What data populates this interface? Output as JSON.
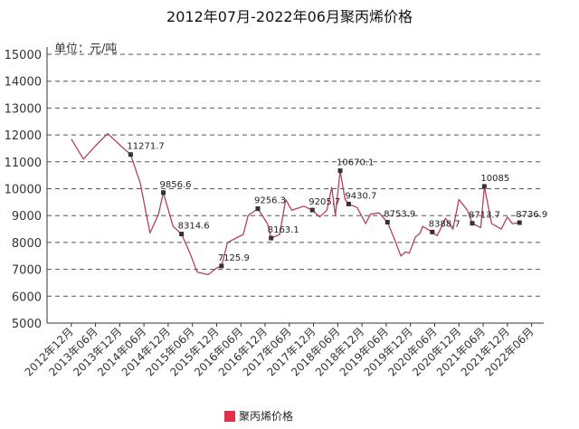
{
  "chart_data": {
    "type": "line",
    "title": "2012年07月-2022年06月聚丙烯价格",
    "unit_label": "单位：元/吨",
    "ylim": [
      5000,
      15000
    ],
    "yticks": [
      5000,
      6000,
      7000,
      8000,
      9000,
      10000,
      11000,
      12000,
      13000,
      14000,
      15000
    ],
    "grid": "horizontal dashed",
    "legend_position": "bottom-center",
    "x_tick_labels": [
      "2012年12月",
      "2013年06月",
      "2013年12月",
      "2014年06月",
      "2014年12月",
      "2015年06月",
      "2015年12月",
      "2016年06月",
      "2016年12月",
      "2017年06月",
      "2017年12月",
      "2018年06月",
      "2018年12月",
      "2019年06月",
      "2019年12月",
      "2020年06月",
      "2020年12月",
      "2021年06月",
      "2021年12月",
      "2022年06月"
    ],
    "series": [
      {
        "name": "聚丙烯价格",
        "color": "#b5415a",
        "points": [
          {
            "t": 1.0,
            "y": 11850
          },
          {
            "t": 1.5,
            "y": 11100
          },
          {
            "t": 2.0,
            "y": 11600
          },
          {
            "t": 2.5,
            "y": 12050
          },
          {
            "t": 3.1,
            "y": 11550
          },
          {
            "t": 3.45,
            "y": 11271.7
          },
          {
            "t": 3.85,
            "y": 10200
          },
          {
            "t": 4.25,
            "y": 8350
          },
          {
            "t": 4.6,
            "y": 9050
          },
          {
            "t": 4.8,
            "y": 9856.6
          },
          {
            "t": 5.2,
            "y": 8600
          },
          {
            "t": 5.55,
            "y": 8314.6
          },
          {
            "t": 5.9,
            "y": 7600
          },
          {
            "t": 6.2,
            "y": 6900
          },
          {
            "t": 6.65,
            "y": 6800
          },
          {
            "t": 7.0,
            "y": 7050
          },
          {
            "t": 7.2,
            "y": 7125.9
          },
          {
            "t": 7.45,
            "y": 8000
          },
          {
            "t": 8.1,
            "y": 8300
          },
          {
            "t": 8.3,
            "y": 9000
          },
          {
            "t": 8.7,
            "y": 9256.3
          },
          {
            "t": 9.1,
            "y": 8700
          },
          {
            "t": 9.25,
            "y": 8163.1
          },
          {
            "t": 9.6,
            "y": 8300
          },
          {
            "t": 9.85,
            "y": 9600
          },
          {
            "t": 10.1,
            "y": 9200
          },
          {
            "t": 10.6,
            "y": 9350
          },
          {
            "t": 10.95,
            "y": 9205.7
          },
          {
            "t": 11.25,
            "y": 8950
          },
          {
            "t": 11.55,
            "y": 9200
          },
          {
            "t": 11.75,
            "y": 10050
          },
          {
            "t": 11.9,
            "y": 9000
          },
          {
            "t": 12.1,
            "y": 10670.1
          },
          {
            "t": 12.3,
            "y": 9600
          },
          {
            "t": 12.45,
            "y": 9430.7
          },
          {
            "t": 12.8,
            "y": 9300
          },
          {
            "t": 13.15,
            "y": 8700
          },
          {
            "t": 13.35,
            "y": 9050
          },
          {
            "t": 13.7,
            "y": 9100
          },
          {
            "t": 14.05,
            "y": 8753.9
          },
          {
            "t": 14.35,
            "y": 8100
          },
          {
            "t": 14.6,
            "y": 7500
          },
          {
            "t": 14.8,
            "y": 7650
          },
          {
            "t": 14.95,
            "y": 7600
          },
          {
            "t": 15.2,
            "y": 8200
          },
          {
            "t": 15.4,
            "y": 8350
          },
          {
            "t": 15.5,
            "y": 8600
          },
          {
            "t": 15.9,
            "y": 8388.7
          },
          {
            "t": 16.1,
            "y": 8250
          },
          {
            "t": 16.45,
            "y": 8900
          },
          {
            "t": 16.75,
            "y": 8500
          },
          {
            "t": 17.0,
            "y": 9600
          },
          {
            "t": 17.35,
            "y": 9200
          },
          {
            "t": 17.55,
            "y": 8713.7
          },
          {
            "t": 17.9,
            "y": 8550
          },
          {
            "t": 18.05,
            "y": 10085
          },
          {
            "t": 18.35,
            "y": 8700
          },
          {
            "t": 18.75,
            "y": 8500
          },
          {
            "t": 19.0,
            "y": 8950
          },
          {
            "t": 19.2,
            "y": 8700
          },
          {
            "t": 19.5,
            "y": 8736.9
          }
        ],
        "data_labels": [
          {
            "t": 3.45,
            "y": 11271.7,
            "text": "11271.7"
          },
          {
            "t": 4.8,
            "y": 9856.6,
            "text": "9856.6"
          },
          {
            "t": 5.55,
            "y": 8314.6,
            "text": "8314.6"
          },
          {
            "t": 7.2,
            "y": 7125.9,
            "text": "7125.9"
          },
          {
            "t": 8.7,
            "y": 9256.3,
            "text": "9256.3"
          },
          {
            "t": 9.25,
            "y": 8163.1,
            "text": "8163.1"
          },
          {
            "t": 10.95,
            "y": 9205.7,
            "text": "9205.7"
          },
          {
            "t": 12.1,
            "y": 10670.1,
            "text": "10670.1"
          },
          {
            "t": 12.45,
            "y": 9430.7,
            "text": "9430.7"
          },
          {
            "t": 14.05,
            "y": 8753.9,
            "text": "8753.9"
          },
          {
            "t": 15.9,
            "y": 8388.7,
            "text": "8388.7"
          },
          {
            "t": 17.55,
            "y": 8713.7,
            "text": "8713.7"
          },
          {
            "t": 18.05,
            "y": 10085,
            "text": "10085"
          },
          {
            "t": 19.5,
            "y": 8736.9,
            "text": "8736.9"
          }
        ]
      }
    ]
  }
}
